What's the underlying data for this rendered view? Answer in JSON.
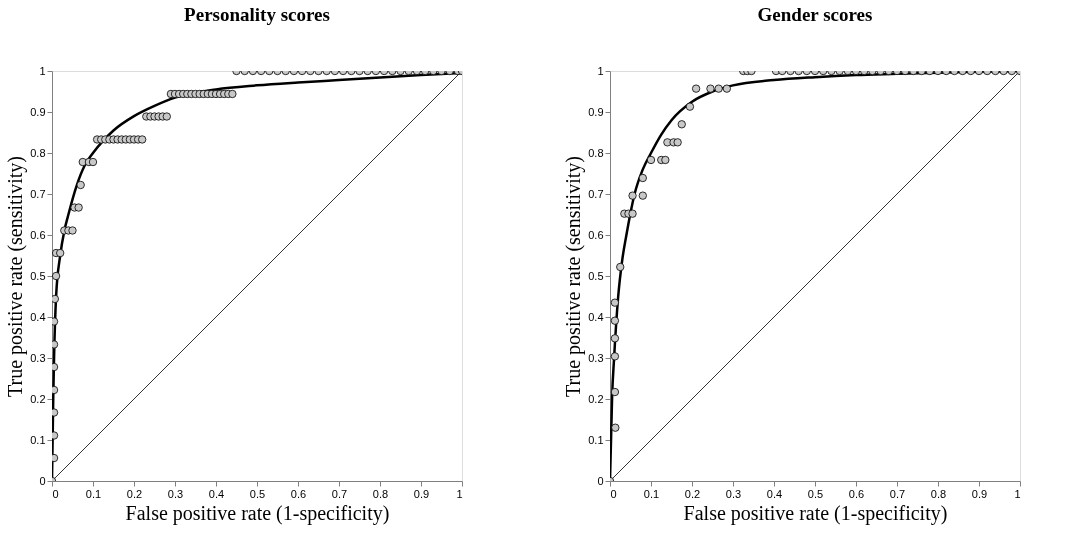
{
  "chart_data": [
    {
      "type": "scatter",
      "title": "Personality scores",
      "xlabel": "False positive rate (1-specificity)",
      "ylabel": "True positive rate (sensitivity)",
      "xlim": [
        0,
        1
      ],
      "ylim": [
        0,
        1
      ],
      "xticks": [
        0,
        0.1,
        0.2,
        0.3,
        0.4,
        0.5,
        0.6,
        0.7,
        0.8,
        0.9,
        1
      ],
      "yticks": [
        0,
        0.1,
        0.2,
        0.3,
        0.4,
        0.5,
        0.6,
        0.7,
        0.8,
        0.9,
        1
      ],
      "grid": false,
      "legend": false,
      "series": [
        {
          "marker": "circle",
          "color": "#c8c8c8",
          "x": [
            0,
            0.005,
            0.005,
            0.005,
            0.005,
            0.005,
            0.005,
            0.005,
            0.007,
            0.01,
            0.01,
            0.02,
            0.03,
            0.04,
            0.05,
            0.055,
            0.065,
            0.07,
            0.075,
            0.09,
            0.1,
            0.11,
            0.12,
            0.13,
            0.14,
            0.15,
            0.16,
            0.17,
            0.18,
            0.19,
            0.2,
            0.21,
            0.22,
            0.23,
            0.24,
            0.25,
            0.26,
            0.27,
            0.28,
            0.29,
            0.3,
            0.31,
            0.32,
            0.33,
            0.34,
            0.35,
            0.36,
            0.37,
            0.38,
            0.39,
            0.4,
            0.41,
            0.42,
            0.43,
            0.44,
            0.45,
            0.47,
            0.49,
            0.51,
            0.53,
            0.55,
            0.57,
            0.59,
            0.61,
            0.63,
            0.65,
            0.67,
            0.69,
            0.71,
            0.73,
            0.75,
            0.77,
            0.79,
            0.81,
            0.83,
            0.85,
            0.87,
            0.89,
            0.91,
            0.93,
            0.95,
            0.97,
            0.99,
            1
          ],
          "values": [
            0,
            0.056,
            0.111,
            0.167,
            0.222,
            0.278,
            0.333,
            0.389,
            0.444,
            0.5,
            0.556,
            0.556,
            0.611,
            0.611,
            0.611,
            0.667,
            0.667,
            0.722,
            0.778,
            0.778,
            0.778,
            0.833,
            0.833,
            0.833,
            0.833,
            0.833,
            0.833,
            0.833,
            0.833,
            0.833,
            0.833,
            0.833,
            0.833,
            0.889,
            0.889,
            0.889,
            0.889,
            0.889,
            0.889,
            0.944,
            0.944,
            0.944,
            0.944,
            0.944,
            0.944,
            0.944,
            0.944,
            0.944,
            0.944,
            0.944,
            0.944,
            0.944,
            0.944,
            0.944,
            0.944,
            1,
            1,
            1,
            1,
            1,
            1,
            1,
            1,
            1,
            1,
            1,
            1,
            1,
            1,
            1,
            1,
            1,
            1,
            1,
            1,
            1,
            1,
            1,
            1,
            1,
            1,
            1,
            1,
            1
          ]
        },
        {
          "type": "line",
          "color": "#000000",
          "x": [
            0,
            0.003,
            0.005,
            0.01,
            0.02,
            0.03,
            0.04,
            0.06,
            0.08,
            0.1,
            0.125,
            0.15,
            0.2,
            0.25,
            0.3,
            0.4,
            0.5,
            0.6,
            0.7,
            0.8,
            0.9,
            1
          ],
          "values": [
            0,
            0.2,
            0.3,
            0.45,
            0.55,
            0.61,
            0.65,
            0.72,
            0.77,
            0.8,
            0.83,
            0.855,
            0.89,
            0.915,
            0.935,
            0.955,
            0.965,
            0.972,
            0.978,
            0.984,
            0.99,
            0.995
          ]
        },
        {
          "type": "line",
          "color": "#000000",
          "x": [
            0,
            1
          ],
          "values": [
            0,
            1
          ]
        }
      ]
    },
    {
      "type": "scatter",
      "title": "Gender scores",
      "xlabel": "False positive rate (1-specificity)",
      "ylabel": "True positive rate (sensitivity)",
      "xlim": [
        0,
        1
      ],
      "ylim": [
        0,
        1
      ],
      "xticks": [
        0,
        0.1,
        0.2,
        0.3,
        0.4,
        0.5,
        0.6,
        0.7,
        0.8,
        0.9,
        1
      ],
      "yticks": [
        0,
        0.1,
        0.2,
        0.3,
        0.4,
        0.5,
        0.6,
        0.7,
        0.8,
        0.9,
        1
      ],
      "grid": false,
      "legend": false,
      "series": [
        {
          "marker": "circle",
          "color": "#c8c8c8",
          "x": [
            0,
            0.013,
            0.012,
            0.012,
            0.012,
            0.012,
            0.012,
            0.025,
            0.035,
            0.045,
            0.055,
            0.055,
            0.08,
            0.08,
            0.1,
            0.125,
            0.135,
            0.14,
            0.155,
            0.165,
            0.175,
            0.195,
            0.21,
            0.245,
            0.265,
            0.285,
            0.325,
            0.335,
            0.345,
            0.405,
            0.42,
            0.44,
            0.46,
            0.48,
            0.5,
            0.52,
            0.54,
            0.56,
            0.58,
            0.6,
            0.62,
            0.64,
            0.66,
            0.68,
            0.7,
            0.72,
            0.74,
            0.76,
            0.78,
            0.8,
            0.82,
            0.84,
            0.86,
            0.88,
            0.9,
            0.92,
            0.94,
            0.96,
            0.98,
            1
          ],
          "values": [
            0,
            0.13,
            0.217,
            0.304,
            0.348,
            0.391,
            0.435,
            0.522,
            0.652,
            0.652,
            0.652,
            0.696,
            0.696,
            0.739,
            0.783,
            0.783,
            0.783,
            0.826,
            0.826,
            0.826,
            0.87,
            0.913,
            0.957,
            0.957,
            0.957,
            0.957,
            1,
            1,
            1,
            1,
            1,
            1,
            1,
            1,
            1,
            1,
            1,
            1,
            1,
            1,
            1,
            1,
            1,
            1,
            1,
            1,
            1,
            1,
            1,
            1,
            1,
            1,
            1,
            1,
            1,
            1,
            1,
            1,
            1,
            1
          ]
        },
        {
          "type": "line",
          "color": "#000000",
          "x": [
            0,
            0.003,
            0.005,
            0.01,
            0.02,
            0.03,
            0.04,
            0.06,
            0.08,
            0.1,
            0.125,
            0.15,
            0.2,
            0.25,
            0.3,
            0.4,
            0.5,
            0.6,
            0.7,
            0.8,
            0.9,
            1
          ],
          "values": [
            0,
            0.12,
            0.2,
            0.3,
            0.45,
            0.54,
            0.6,
            0.7,
            0.76,
            0.8,
            0.845,
            0.88,
            0.925,
            0.95,
            0.965,
            0.978,
            0.985,
            0.99,
            0.993,
            0.996,
            0.998,
            1
          ]
        },
        {
          "type": "line",
          "color": "#000000",
          "x": [
            0,
            1
          ],
          "values": [
            0,
            1
          ]
        }
      ]
    }
  ]
}
